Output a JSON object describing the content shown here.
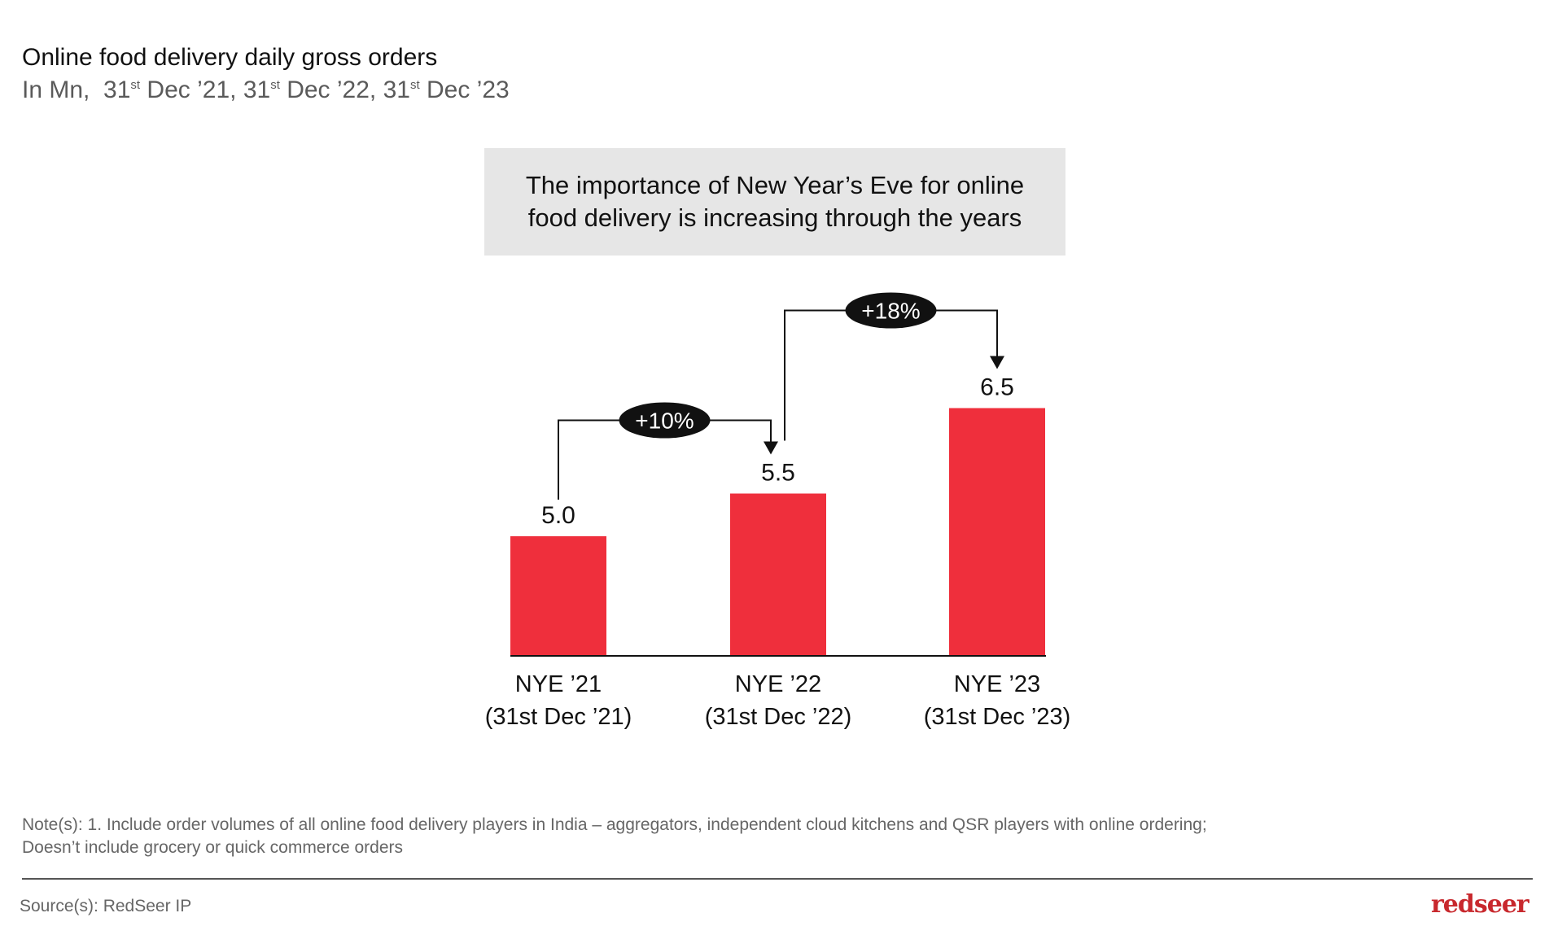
{
  "header": {
    "title": "Online food delivery daily gross orders",
    "subtitle_prefix": "In Mn,",
    "subtitle_dates": [
      {
        "day": "31",
        "sup": "st",
        "rest": " Dec ’21,"
      },
      {
        "day": "31",
        "sup": "st",
        "rest": " Dec ’22,"
      },
      {
        "day": "31",
        "sup": "st",
        "rest": " Dec ’23"
      }
    ]
  },
  "callout": "The importance of New Year’s Eve for online food delivery is increasing through the years",
  "chart_data": {
    "type": "bar",
    "title": "Online food delivery daily gross orders",
    "ylabel": "In Mn",
    "categories": [
      {
        "line1": "NYE ’21",
        "line2": "(31st Dec ’21)"
      },
      {
        "line1": "NYE ’22",
        "line2": "(31st Dec ’22)"
      },
      {
        "line1": "NYE ’23",
        "line2": "(31st Dec ’23)"
      }
    ],
    "values": [
      5.0,
      5.5,
      6.5
    ],
    "value_labels": [
      "5.0",
      "5.5",
      "6.5"
    ],
    "growth_annotations": [
      {
        "from": 0,
        "to": 1,
        "label": "+10%"
      },
      {
        "from": 1,
        "to": 2,
        "label": "+18%"
      }
    ],
    "bar_color": "#ef2f3c",
    "grid": false
  },
  "footer": {
    "note_line1": "Note(s): 1. Include order volumes of all online food delivery players in India – aggregators, independent cloud kitchens and QSR players with online ordering;",
    "note_line2": "Doesn’t include grocery or quick commerce orders",
    "source": "Source(s): RedSeer IP",
    "logo": "redseer"
  }
}
